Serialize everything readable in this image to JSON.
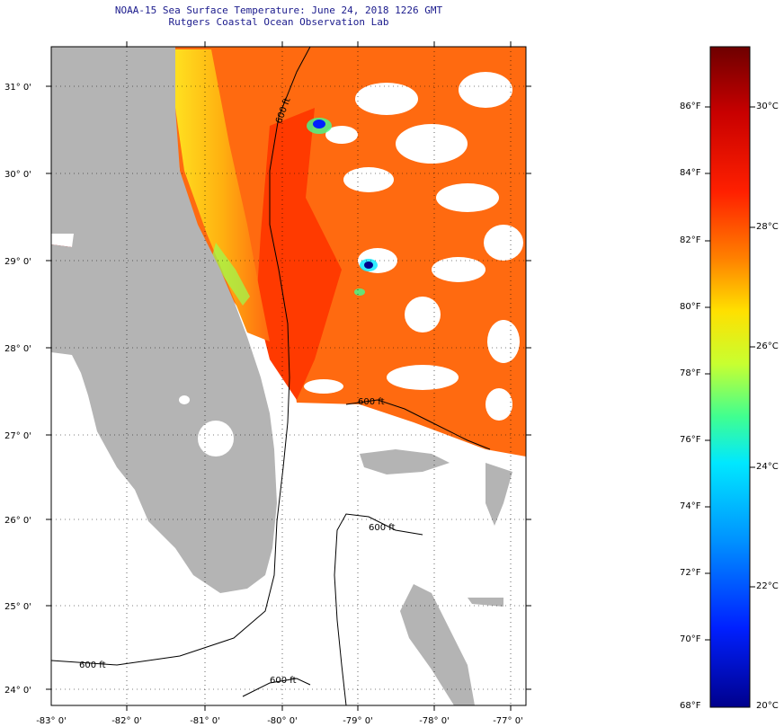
{
  "header": {
    "title": "NOAA-15 Sea Surface Temperature:  June 24, 2018 1226 GMT",
    "subtitle": "Rutgers Coastal Ocean Observation Lab"
  },
  "axes": {
    "lat_labels": [
      "31° 0'",
      "30° 0'",
      "29° 0'",
      "28° 0'",
      "27° 0'",
      "26° 0'",
      "25° 0'",
      "24° 0'"
    ],
    "lon_labels": [
      "-83° 0'",
      "-82° 0'",
      "-81° 0'",
      "-80° 0'",
      "-79° 0'",
      "-78° 0'",
      "-77° 0'"
    ]
  },
  "contours": {
    "label": "600 ft"
  },
  "colorbar": {
    "fahrenheit_labels": [
      "86°F",
      "84°F",
      "82°F",
      "80°F",
      "78°F",
      "76°F",
      "74°F",
      "72°F",
      "70°F",
      "68°F"
    ],
    "celsius_labels": [
      "30°C",
      "28°C",
      "26°C",
      "24°C",
      "22°C",
      "20°C"
    ],
    "colors": [
      "#6e0000",
      "#c80000",
      "#ff2000",
      "#ff8000",
      "#ffe000",
      "#c8ff30",
      "#40ff90",
      "#00e8ff",
      "#0090ff",
      "#0020ff",
      "#00008c"
    ]
  },
  "map_colors": {
    "land": "#b4b4b4",
    "cloud": "#ffffff",
    "warm_sst": "#ff3000",
    "sst_offshore": "#ff6a10",
    "sst_coastal": "#ffd010"
  }
}
